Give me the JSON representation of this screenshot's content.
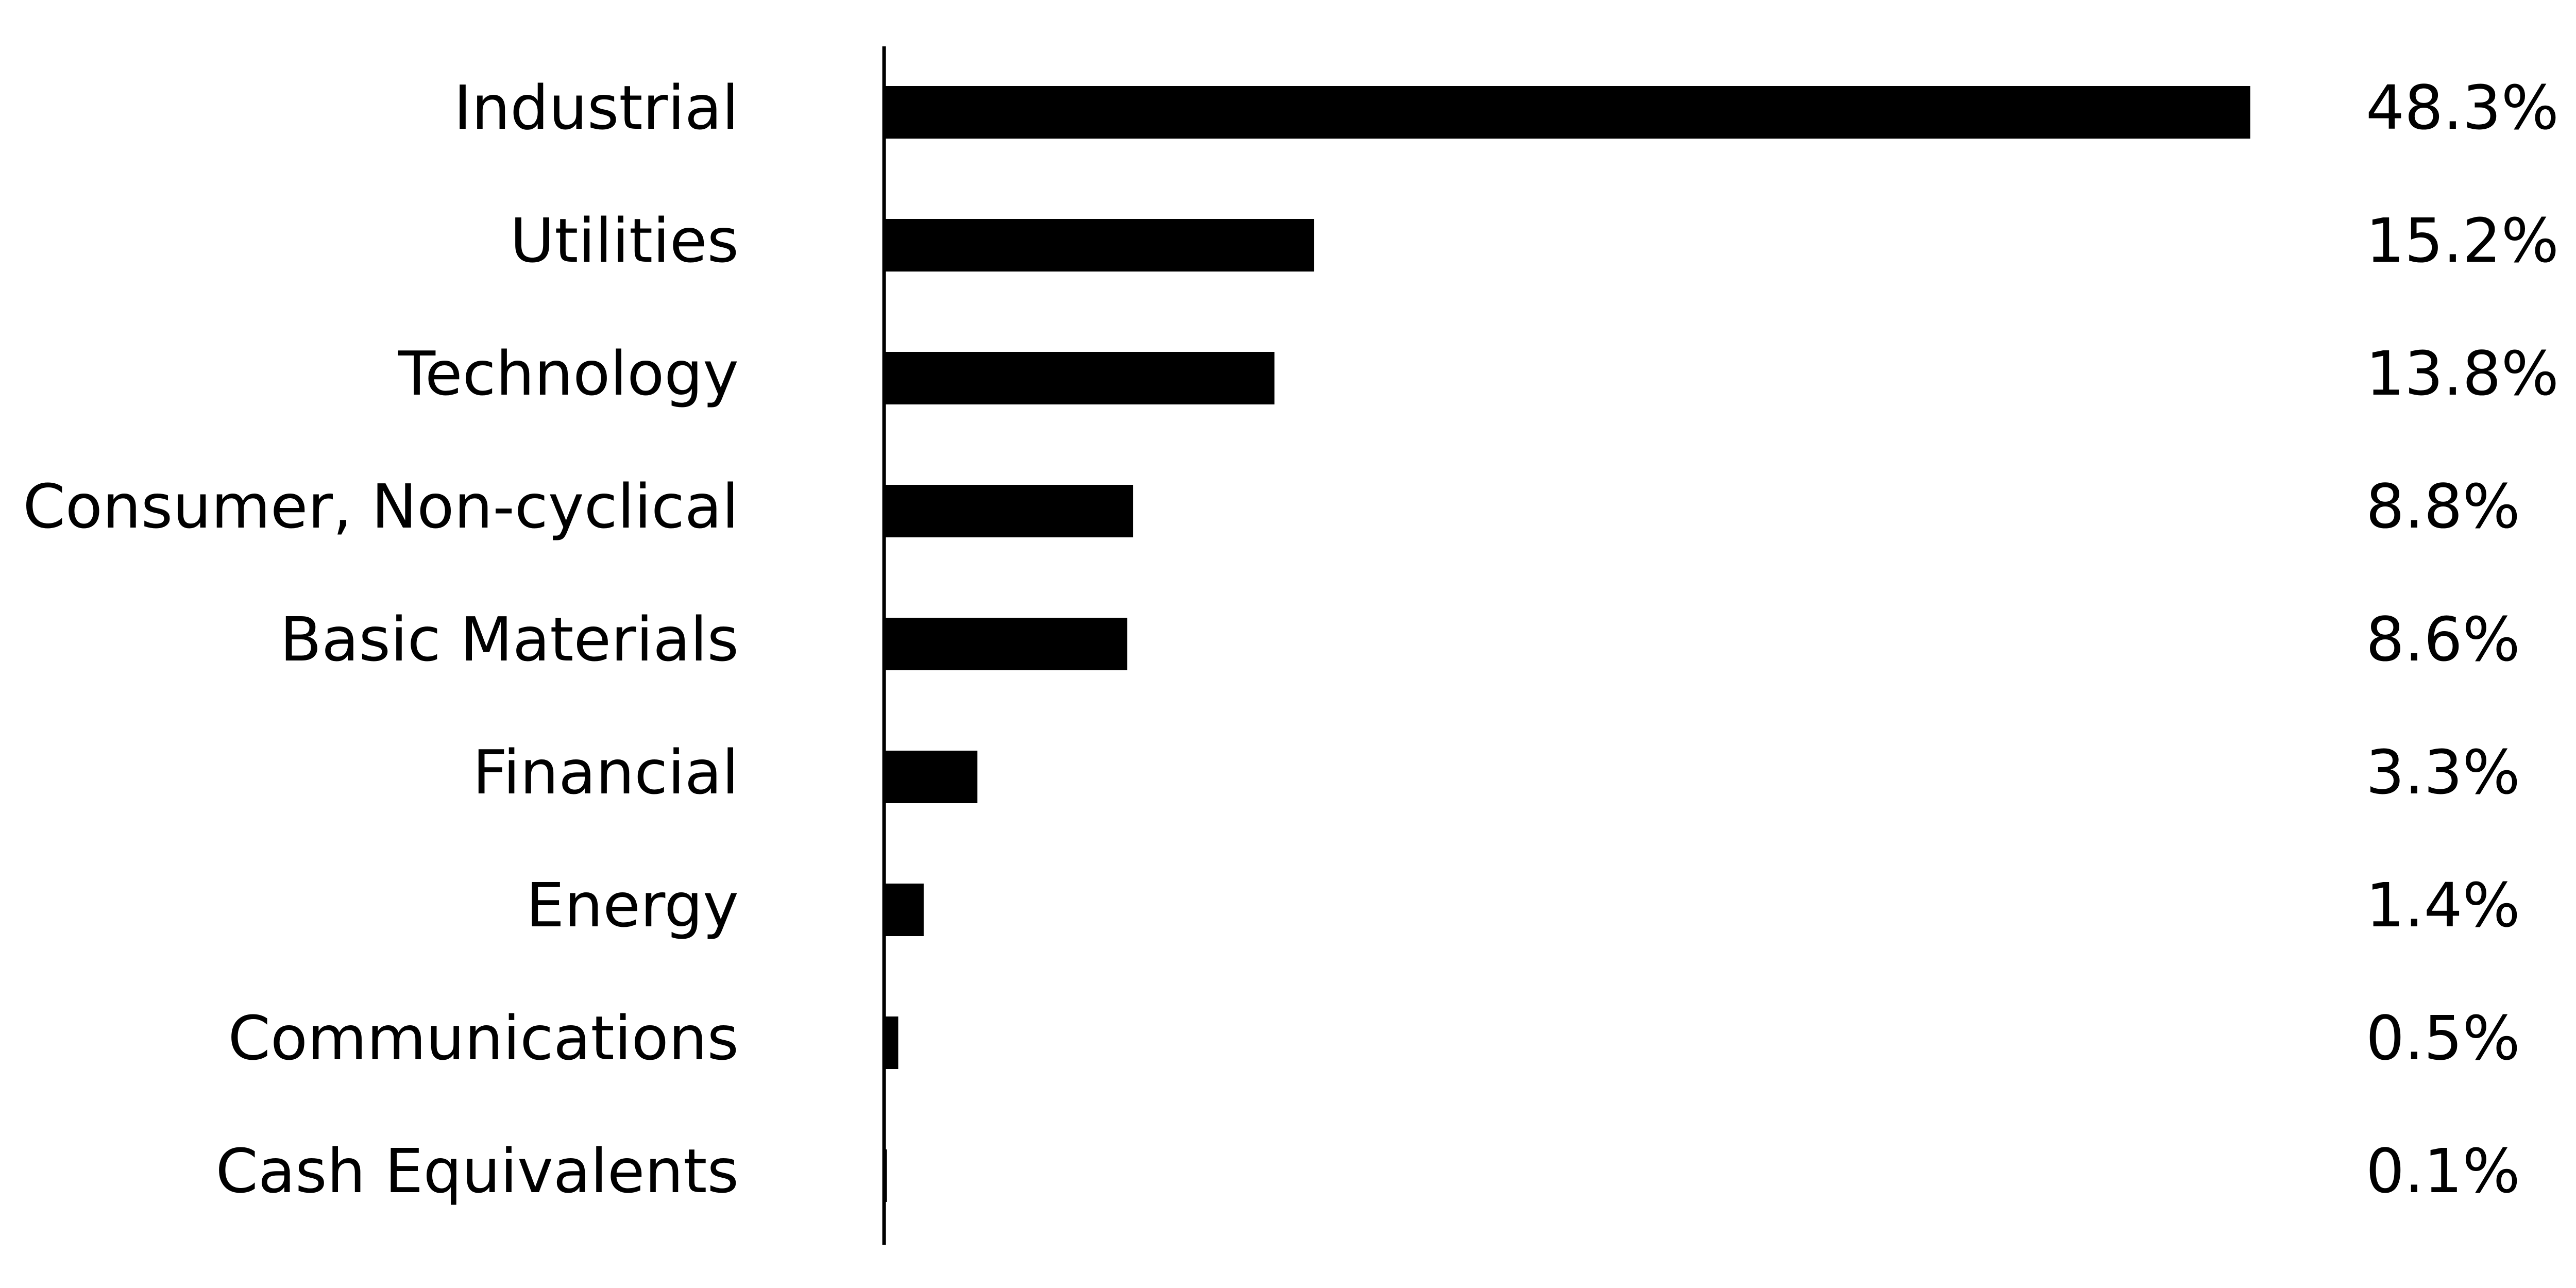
{
  "chart_data": {
    "type": "bar",
    "orientation": "horizontal",
    "categories": [
      "Industrial",
      "Utilities",
      "Technology",
      "Consumer, Non-cyclical",
      "Basic Materials",
      "Financial",
      "Energy",
      "Communications",
      "Cash Equivalents"
    ],
    "values": [
      48.3,
      15.2,
      13.8,
      8.8,
      8.6,
      3.3,
      1.4,
      0.5,
      0.1
    ],
    "value_labels": [
      "48.3%",
      "15.2%",
      "13.8%",
      "8.8%",
      "8.6%",
      "3.3%",
      "1.4%",
      "0.5%",
      "0.1%"
    ],
    "color": "#000000"
  }
}
